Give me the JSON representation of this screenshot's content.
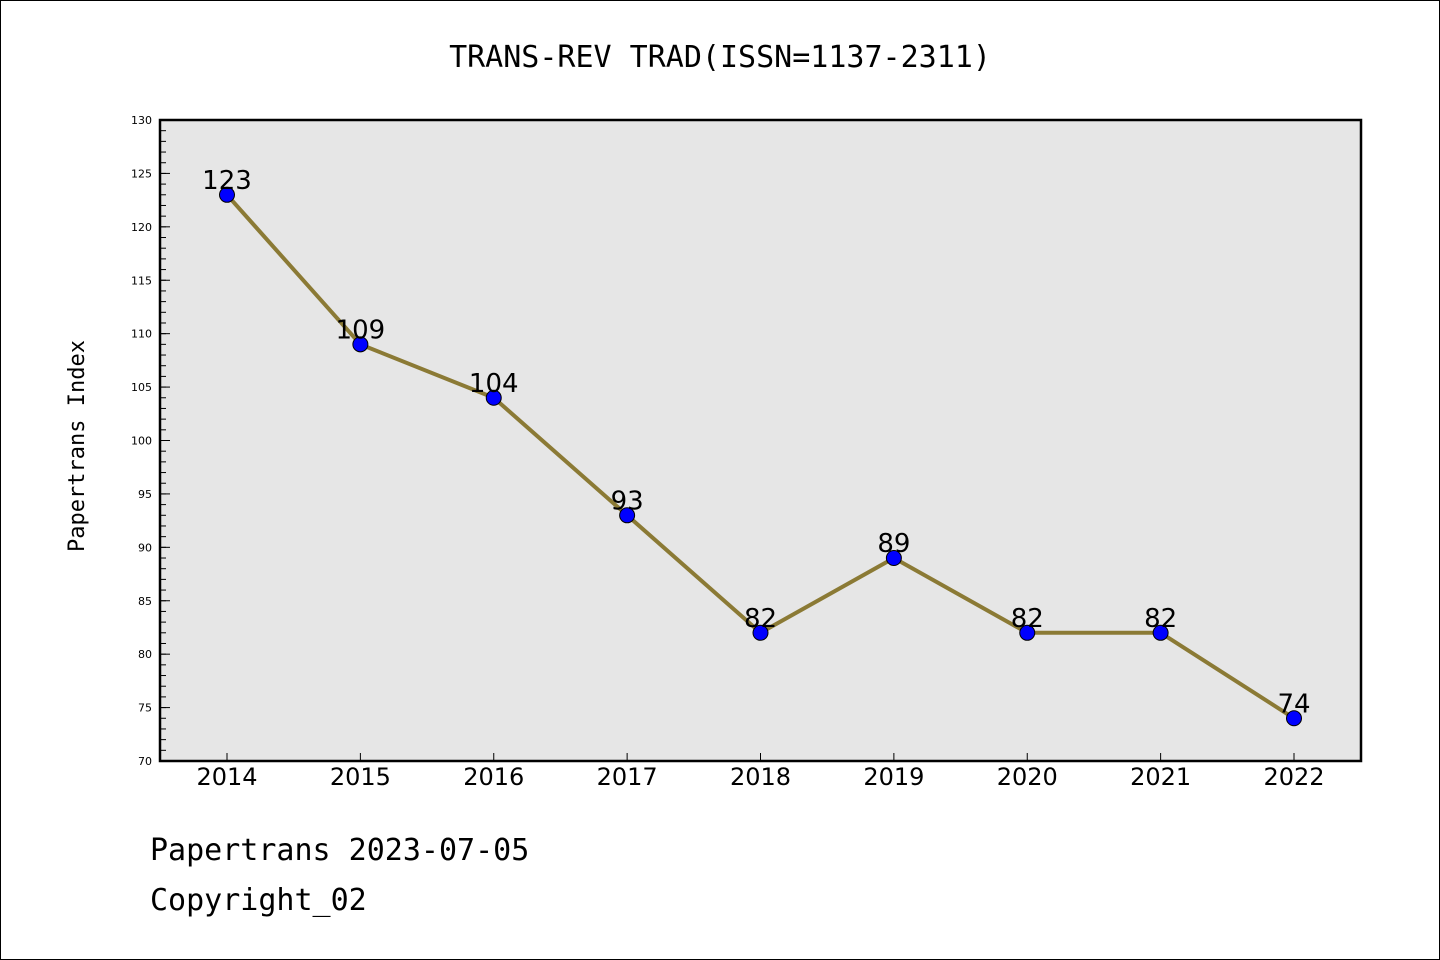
{
  "chart_data": {
    "type": "line",
    "title": "TRANS-REV TRAD(ISSN=1137-2311)",
    "xlabel": "",
    "ylabel": "Papertrans Index",
    "categories": [
      "2014",
      "2015",
      "2016",
      "2017",
      "2018",
      "2019",
      "2020",
      "2021",
      "2022"
    ],
    "values": [
      123,
      109,
      104,
      93,
      82,
      89,
      82,
      82,
      74
    ],
    "data_labels": [
      "123",
      "109",
      "104",
      "93",
      "82",
      "89",
      "82",
      "82",
      "74"
    ],
    "ylim": [
      70,
      130
    ],
    "y_ticks": [
      70,
      75,
      80,
      85,
      90,
      95,
      100,
      105,
      110,
      115,
      120,
      125,
      130
    ],
    "y_tick_labels": [
      "70",
      "75",
      "80",
      "85",
      "90",
      "95",
      "100",
      "105",
      "110",
      "115",
      "120",
      "125",
      "130"
    ],
    "y_minor_step": 1,
    "grid": false,
    "legend": "none",
    "line_color": "#8b7a35",
    "marker_color": "#0000ff",
    "plot_background": "#e6e6e6"
  },
  "footer": {
    "line1": "Papertrans 2023-07-05",
    "line2": "Copyright_02"
  }
}
